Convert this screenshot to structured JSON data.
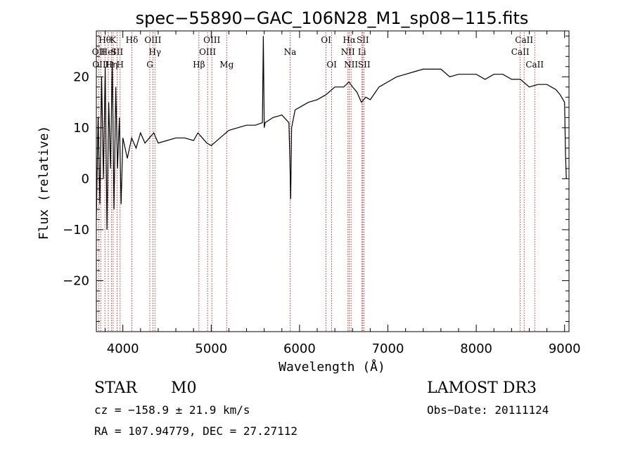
{
  "chart_data": {
    "type": "line",
    "title": "spec−55890−GAC_106N28_M1_sp08−115.fits",
    "xlabel": "Wavelength (Å)",
    "ylabel": "Flux (relative)",
    "xlim": [
      3700,
      9050
    ],
    "ylim": [
      -30,
      29
    ],
    "xticks": [
      4000,
      5000,
      6000,
      7000,
      8000,
      9000
    ],
    "yticks": [
      -20,
      -10,
      0,
      10,
      20
    ],
    "ytick_labels": [
      "−20",
      "−10",
      "0",
      "10",
      "20"
    ],
    "series": [
      {
        "name": "flux",
        "x": [
          3700,
          3720,
          3740,
          3760,
          3780,
          3800,
          3820,
          3840,
          3860,
          3880,
          3900,
          3920,
          3940,
          3960,
          3980,
          4000,
          4050,
          4100,
          4150,
          4200,
          4250,
          4300,
          4350,
          4400,
          4500,
          4600,
          4700,
          4800,
          4850,
          4900,
          4950,
          5000,
          5100,
          5200,
          5300,
          5400,
          5500,
          5580,
          5590,
          5600,
          5610,
          5700,
          5800,
          5880,
          5890,
          5900,
          5910,
          5950,
          6000,
          6100,
          6200,
          6300,
          6400,
          6500,
          6560,
          6600,
          6650,
          6700,
          6750,
          6800,
          6900,
          7000,
          7100,
          7200,
          7300,
          7400,
          7500,
          7600,
          7700,
          7800,
          7900,
          8000,
          8100,
          8200,
          8300,
          8400,
          8500,
          8600,
          8700,
          8800,
          8900,
          8950,
          9000,
          9010,
          9020
        ],
        "y": [
          -8,
          12,
          -5,
          20,
          0,
          22,
          -10,
          15,
          2,
          23,
          -6,
          18,
          2,
          12,
          -5,
          8,
          4,
          8,
          6,
          9,
          7,
          8,
          9,
          7,
          7.5,
          8,
          8,
          7.5,
          9,
          8,
          7,
          6.5,
          8,
          9.5,
          10,
          10.5,
          10.5,
          11,
          28,
          10,
          11,
          12,
          12.5,
          11,
          4,
          -4,
          10,
          13.5,
          14,
          15,
          15.5,
          16.5,
          18,
          18,
          19,
          18,
          17,
          15,
          16,
          15.5,
          18,
          19,
          20,
          20.5,
          21,
          21.5,
          21.5,
          21.5,
          20,
          20.5,
          20.5,
          20.5,
          19.5,
          20.5,
          20.5,
          19.5,
          19.5,
          18,
          18.5,
          18.5,
          17.5,
          16.5,
          15,
          5,
          0
        ]
      }
    ],
    "line_markers": [
      {
        "x": 3727,
        "label": "OII",
        "row": 2
      },
      {
        "x": 3750,
        "label": "OIII",
        "row": 3
      },
      {
        "x": 3797,
        "label": "Hθ",
        "row": 1
      },
      {
        "x": 3835,
        "label": "HeI",
        "row": 2
      },
      {
        "x": 3870,
        "label": "Hη",
        "row": 3
      },
      {
        "x": 3890,
        "label": "K",
        "row": 1
      },
      {
        "x": 3934,
        "label": "SII",
        "row": 2
      },
      {
        "x": 3969,
        "label": "H",
        "row": 3
      },
      {
        "x": 4102,
        "label": "Hδ",
        "row": 1
      },
      {
        "x": 4305,
        "label": "G",
        "row": 3
      },
      {
        "x": 4340,
        "label": "OIII",
        "row": 1
      },
      {
        "x": 4363,
        "label": "Hγ",
        "row": 2
      },
      {
        "x": 4861,
        "label": "Hβ",
        "row": 3
      },
      {
        "x": 4959,
        "label": "OIII",
        "row": 2
      },
      {
        "x": 5007,
        "label": "OIII",
        "row": 1
      },
      {
        "x": 5175,
        "label": "Mg",
        "row": 3
      },
      {
        "x": 5893,
        "label": "Na",
        "row": 2
      },
      {
        "x": 6300,
        "label": "OI",
        "row": 1
      },
      {
        "x": 6364,
        "label": "OI",
        "row": 3
      },
      {
        "x": 6548,
        "label": "NII",
        "row": 2
      },
      {
        "x": 6563,
        "label": "Hα",
        "row": 1
      },
      {
        "x": 6583,
        "label": "NII",
        "row": 3
      },
      {
        "x": 6707,
        "label": "Li",
        "row": 2
      },
      {
        "x": 6716,
        "label": "SII",
        "row": 1
      },
      {
        "x": 6731,
        "label": "SII",
        "row": 3
      },
      {
        "x": 8498,
        "label": "CaII",
        "row": 2
      },
      {
        "x": 8542,
        "label": "CaII",
        "row": 1
      },
      {
        "x": 8662,
        "label": "CaII",
        "row": 3
      }
    ],
    "colors": {
      "line": "#000000",
      "marker": "#c00000",
      "axes": "#000000"
    }
  },
  "info": {
    "object_class": "STAR",
    "subclass": "M0",
    "survey": "LAMOST DR3",
    "cz": "cz = −158.9 ± 21.9 km/s",
    "obs_date": "Obs−Date: 20111124",
    "radec": "RA = 107.94779, DEC =  27.27112"
  }
}
